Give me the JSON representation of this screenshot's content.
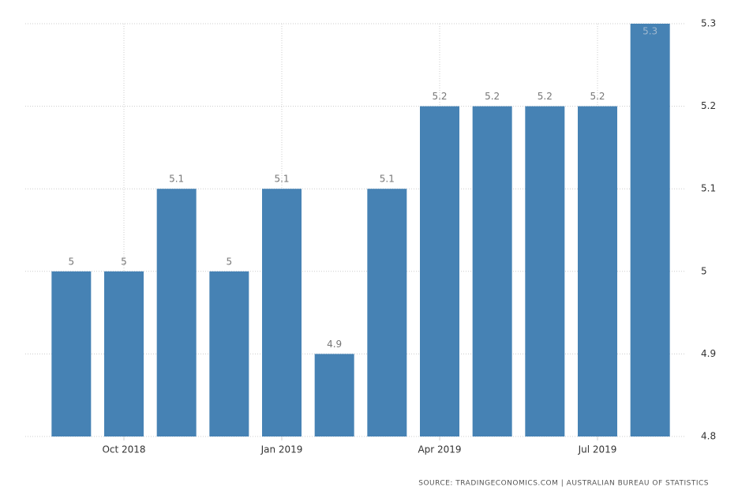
{
  "chart_data": {
    "type": "bar",
    "categories": [
      null,
      "Oct 2018",
      null,
      null,
      "Jan 2019",
      null,
      null,
      "Apr 2019",
      null,
      null,
      "Jul 2019",
      null
    ],
    "values": [
      5,
      5,
      5.1,
      5,
      5.1,
      4.9,
      5.1,
      5.2,
      5.2,
      5.2,
      5.2,
      5.3
    ],
    "color": "#4682b4",
    "ylim": [
      4.8,
      5.3
    ],
    "yticks": [
      4.8,
      4.9,
      5,
      5.1,
      5.2,
      5.3
    ],
    "grid": true,
    "source": "SOURCE: TRADINGECONOMICS.COM | AUSTRALIAN BUREAU OF STATISTICS"
  }
}
